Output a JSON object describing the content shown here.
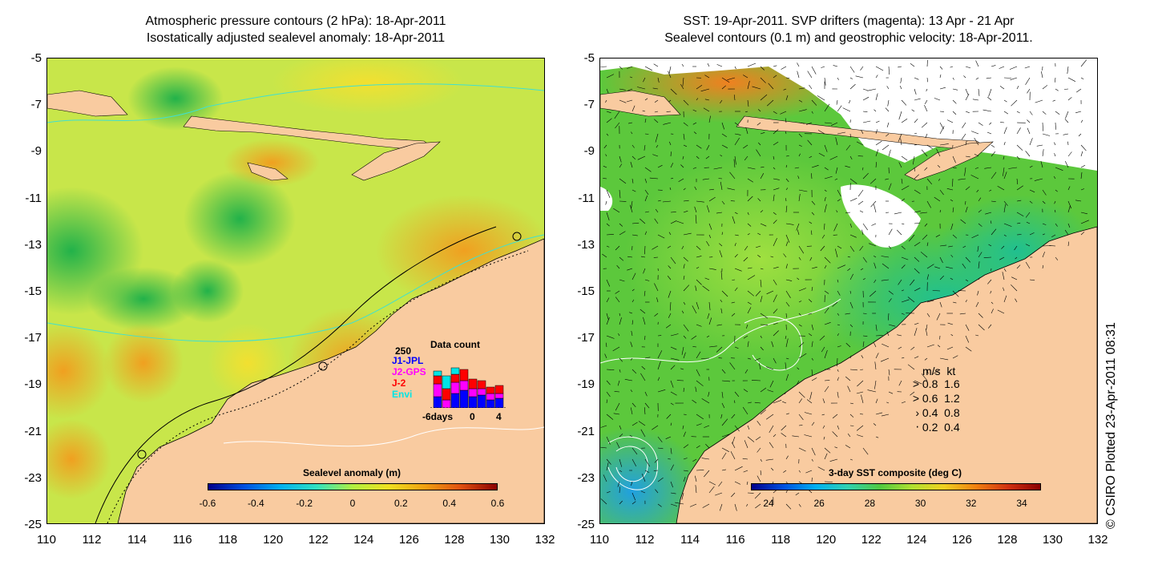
{
  "left_title": {
    "line1": "Atmospheric pressure contours (2 hPa): 18-Apr-2011",
    "line2": "Isostatically adjusted sealevel anomaly: 18-Apr-2011"
  },
  "right_title": {
    "line1": "SST: 19-Apr-2011. SVP drifters (magenta): 13 Apr - 21 Apr",
    "line2": "Sealevel contours (0.1 m) and geostrophic velocity: 18-Apr-2011."
  },
  "axes": {
    "y_ticks": [
      "-5",
      "-7",
      "-9",
      "-11",
      "-13",
      "-15",
      "-17",
      "-19",
      "-21",
      "-23",
      "-25"
    ],
    "x_ticks": [
      "110",
      "112",
      "114",
      "116",
      "118",
      "120",
      "122",
      "124",
      "126",
      "128",
      "130",
      "132"
    ]
  },
  "left_colorbar": {
    "title": "Sealevel anomaly (m)",
    "ticks": [
      "-0.6",
      "-0.4",
      "-0.2",
      "0",
      "0.2",
      "0.4",
      "0.6"
    ]
  },
  "right_colorbar": {
    "title": "3-day SST composite (deg C)",
    "ticks": [
      "24",
      "26",
      "28",
      "30",
      "32",
      "34"
    ]
  },
  "data_count": {
    "title": "Data count",
    "max_label": "250",
    "x_start_label": "-6days",
    "x_mid_label": "0",
    "x_end_label": "4",
    "missions": [
      {
        "name": "J1-JPL",
        "color": "#0000ff"
      },
      {
        "name": "J2-GPS",
        "color": "#ff00ff"
      },
      {
        "name": "J-2",
        "color": "#ff0000"
      },
      {
        "name": "Envi",
        "color": "#00e5e5"
      }
    ]
  },
  "velocity_legend": {
    "header_ms": "m/s",
    "header_kt": "kt",
    "rows": [
      {
        "ms": "0.8",
        "kt": "1.6"
      },
      {
        "ms": "0.6",
        "kt": "1.2"
      },
      {
        "ms": "0.4",
        "kt": "0.8"
      },
      {
        "ms": "0.2",
        "kt": "0.4"
      }
    ]
  },
  "credit": "© CSIRO Plotted 23-Apr-2011 08:31",
  "colors": {
    "land": "#f9cba0",
    "sla_mid": "#c8e64a",
    "sst_mid": "#5cc83c"
  }
}
